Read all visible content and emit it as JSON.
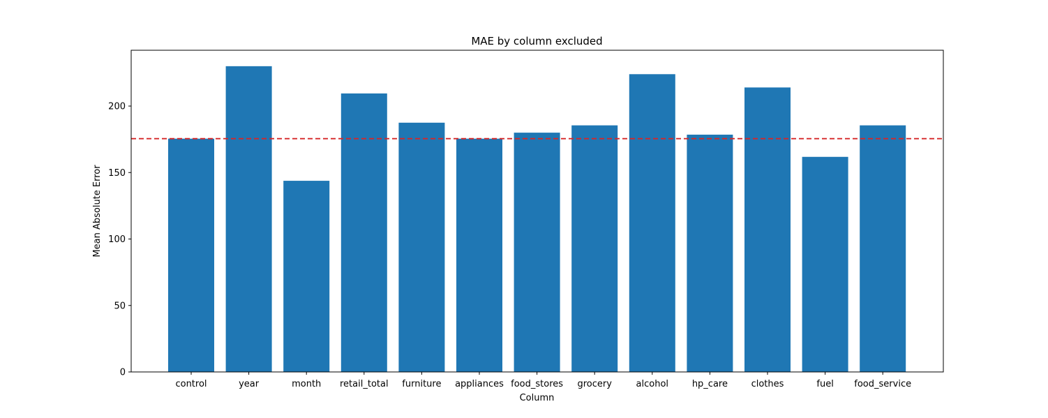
{
  "chart_data": {
    "type": "bar",
    "title": "MAE by column excluded",
    "xlabel": "Column",
    "ylabel": "Mean Absolute Error",
    "categories": [
      "control",
      "year",
      "month",
      "retail_total",
      "furniture",
      "appliances",
      "food_stores",
      "grocery",
      "alcohol",
      "hp_care",
      "clothes",
      "fuel",
      "food_service"
    ],
    "values": [
      175.5,
      230.0,
      143.8,
      209.5,
      187.5,
      175.5,
      180.0,
      185.5,
      224.0,
      178.5,
      214.0,
      161.8,
      185.5
    ],
    "reference_line": {
      "value": 175.5,
      "style": "dashed",
      "color": "#d62728"
    },
    "ylim": [
      0,
      242
    ],
    "yticks": [
      0,
      50,
      100,
      150,
      200
    ],
    "grid": false,
    "bar_color": "#1f77b4"
  }
}
